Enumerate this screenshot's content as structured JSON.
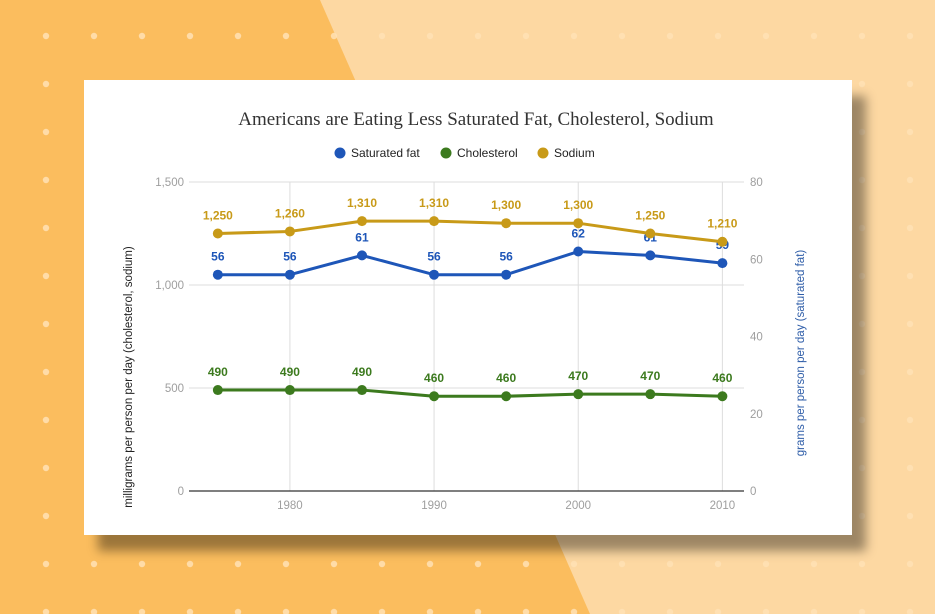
{
  "colors": {
    "background": "#fbbd5e",
    "background_light": "#fdd8a2",
    "dots": "#ffe2b5",
    "saturated_fat": "#1e56b8",
    "cholesterol": "#3c7a1e",
    "sodium": "#c89a18",
    "left_axis_title": "#222222",
    "right_axis_title": "#2e5da8"
  },
  "chart_data": {
    "type": "line",
    "title": "Americans are Eating Less Saturated Fat, Cholesterol, Sodium",
    "x": [
      1975,
      1980,
      1985,
      1990,
      1995,
      2000,
      2005,
      2010
    ],
    "x_ticks": [
      1980,
      1990,
      2000,
      2010
    ],
    "x_tick_labels": [
      "1980",
      "1990",
      "2000",
      "2010"
    ],
    "xlim": [
      1973,
      2011.5
    ],
    "ylabel_left": "milligrams per person per day (cholesterol, sodium)",
    "ylabel_right": "grams per person per day (saturated fat)",
    "ylim_left": [
      0,
      1500
    ],
    "ylim_right": [
      0,
      80
    ],
    "y_ticks_left": [
      0,
      500,
      1000,
      1500
    ],
    "y_tick_labels_left": [
      "0",
      "500",
      "1,000",
      "1,500"
    ],
    "y_ticks_right": [
      0,
      20,
      40,
      60,
      80
    ],
    "y_tick_labels_right": [
      "0",
      "20",
      "40",
      "60",
      "80"
    ],
    "legend_position": "top",
    "grid": true,
    "series": [
      {
        "name": "Saturated fat",
        "axis": "right",
        "values": [
          56,
          56,
          61,
          56,
          56,
          62,
          61,
          59
        ],
        "labels": [
          "56",
          "56",
          "61",
          "56",
          "56",
          "62",
          "61",
          "59"
        ]
      },
      {
        "name": "Cholesterol",
        "axis": "left",
        "values": [
          490,
          490,
          490,
          460,
          460,
          470,
          470,
          460
        ],
        "labels": [
          "490",
          "490",
          "490",
          "460",
          "460",
          "470",
          "470",
          "460"
        ]
      },
      {
        "name": "Sodium",
        "axis": "left",
        "values": [
          1250,
          1260,
          1310,
          1310,
          1300,
          1300,
          1250,
          1210
        ],
        "labels": [
          "1,250",
          "1,260",
          "1,310",
          "1,310",
          "1,300",
          "1,300",
          "1,250",
          "1,210"
        ]
      }
    ]
  }
}
